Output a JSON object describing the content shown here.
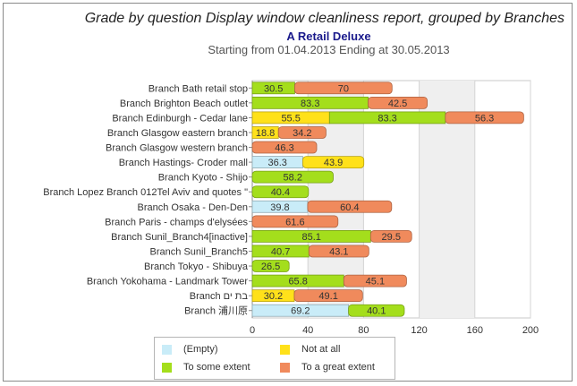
{
  "title": "Grade by question Display window cleanliness report, grouped by Branches",
  "subtitle": "A Retail Deluxe",
  "date_range": "Starting from 01.04.2013 Ending at 30.05.2013",
  "colors": {
    "empty": "#c9ecf8",
    "not_at_all": "#ffe11a",
    "to_some_extent": "#a4de1c",
    "to_a_great_extent": "#f08a5c"
  },
  "legend": [
    {
      "key": "empty",
      "label": "(Empty)"
    },
    {
      "key": "not_at_all",
      "label": "Not at all"
    },
    {
      "key": "to_some_extent",
      "label": "To some extent"
    },
    {
      "key": "to_a_great_extent",
      "label": "To a great extent"
    }
  ],
  "chart_data": {
    "type": "bar",
    "orientation": "horizontal",
    "stacked": true,
    "title": "Grade by question Display window cleanliness report, grouped by Branches",
    "xlim": [
      0,
      200
    ],
    "xticks": [
      0,
      40,
      80,
      120,
      160,
      200
    ],
    "grid": "alternating vertical bands",
    "legend_position": "bottom",
    "categories": [
      "Branch Bath retail stop",
      "Branch Brighton Beach outlet",
      "Branch Edinburgh - Cedar lane",
      "Branch Glasgow eastern branch",
      "Branch Glasgow western branch",
      "Branch Hastings- Croder mall",
      "Branch Kyoto - Shijo",
      "Branch Lopez Branch 012Tel Aviv and quotes \"",
      "Branch Osaka - Den-Den",
      "Branch Paris - champs d'elysées",
      "Branch Sunil_Branch4[inactive]",
      "Branch Sunil_Branch5",
      "Branch Tokyo - Shibuya",
      "Branch Yokohama - Landmark Tower",
      "Branch בת ים",
      "Branch 浦川原"
    ],
    "series": [
      {
        "name": "(Empty)",
        "key": "empty",
        "values": [
          null,
          null,
          null,
          null,
          null,
          36.3,
          null,
          null,
          39.8,
          null,
          null,
          null,
          null,
          null,
          null,
          69.2
        ]
      },
      {
        "name": "Not at all",
        "key": "not_at_all",
        "values": [
          null,
          null,
          55.5,
          18.8,
          null,
          43.9,
          null,
          null,
          null,
          null,
          null,
          null,
          null,
          null,
          30.2,
          null
        ]
      },
      {
        "name": "To some extent",
        "key": "to_some_extent",
        "values": [
          30.5,
          83.3,
          83.3,
          null,
          null,
          null,
          58.2,
          40.4,
          null,
          null,
          85.1,
          40.7,
          26.5,
          65.8,
          null,
          40.1
        ]
      },
      {
        "name": "To a great extent",
        "key": "to_a_great_extent",
        "values": [
          70,
          42.5,
          56.3,
          34.2,
          46.3,
          null,
          null,
          null,
          60.4,
          61.6,
          29.5,
          43.1,
          null,
          45.1,
          49.1,
          null
        ]
      }
    ]
  }
}
